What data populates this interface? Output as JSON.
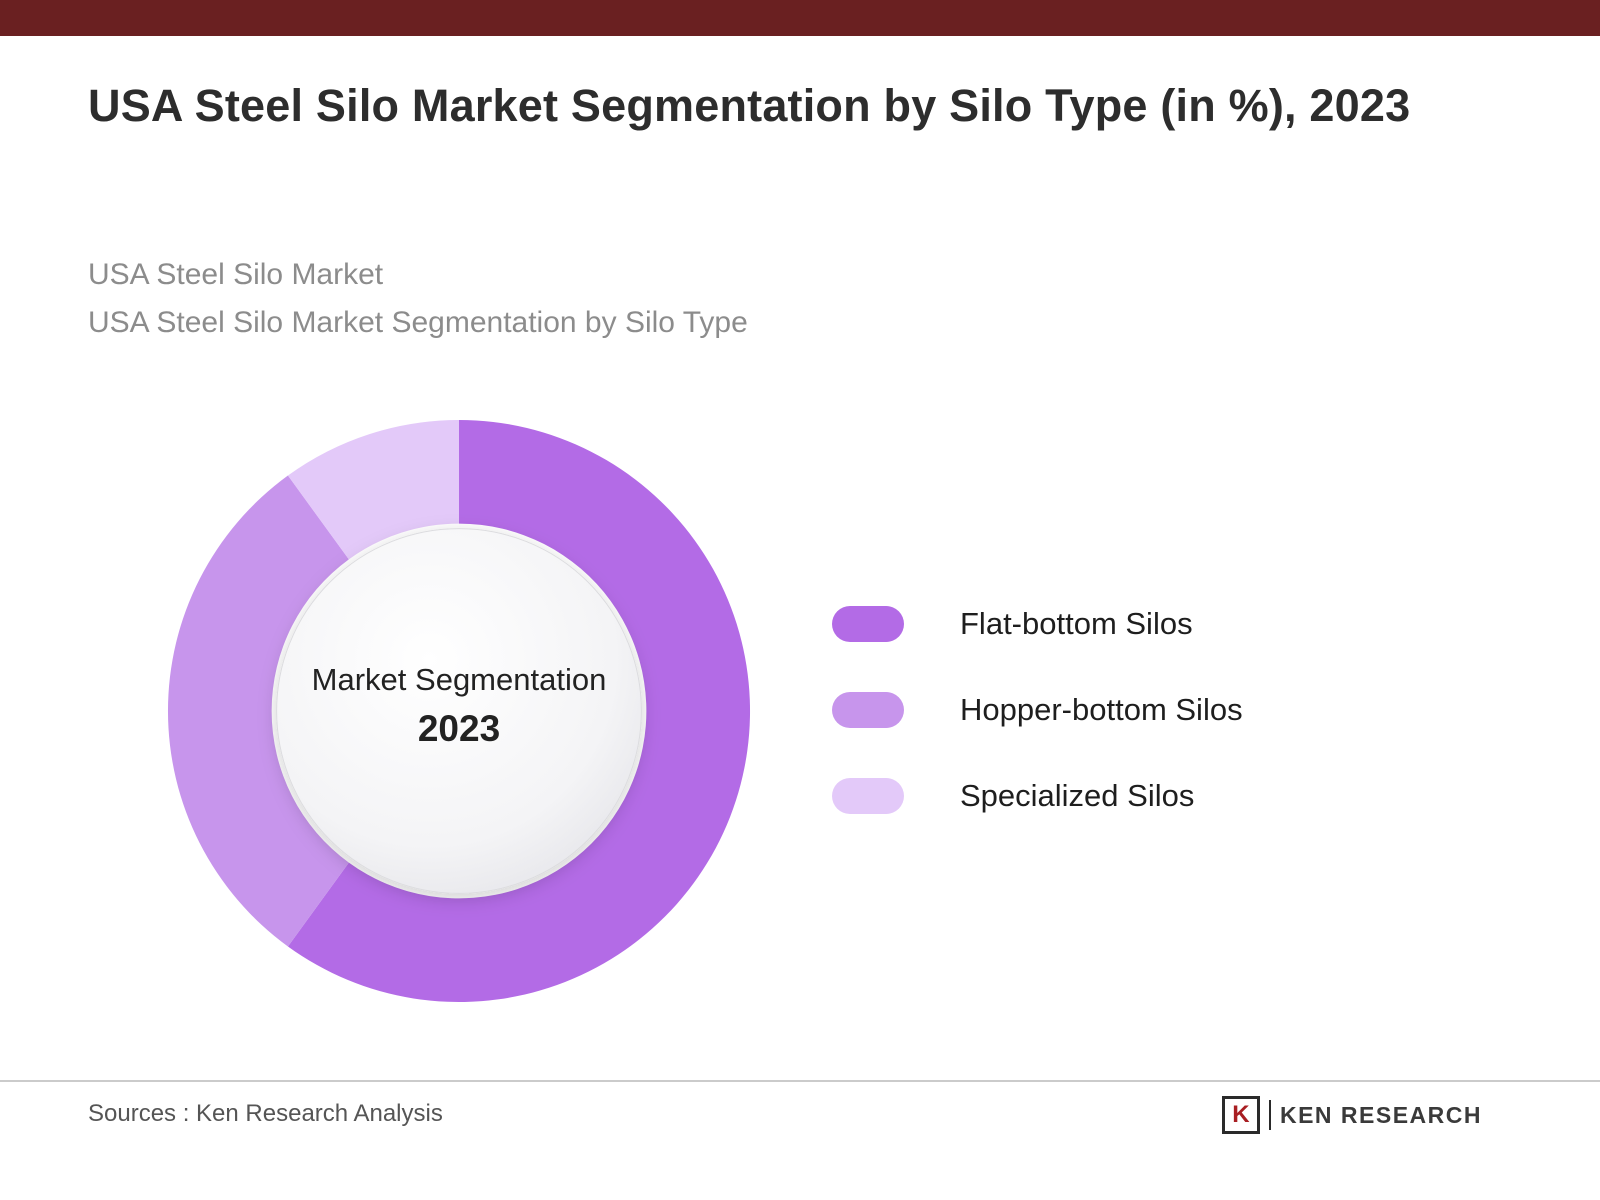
{
  "page": {
    "title": "USA Steel Silo Market Segmentation by Silo Type (in %), 2023",
    "subtitle_line1": "USA Steel Silo Market",
    "subtitle_line2": "USA Steel Silo Market Segmentation by Silo Type"
  },
  "chart_data": {
    "type": "pie",
    "donut": true,
    "title": "USA Steel Silo Market Segmentation by Silo Type (in %), 2023",
    "center_label": "Market Segmentation",
    "center_year": "2023",
    "categories": [
      "Flat-bottom Silos",
      "Hopper-bottom Silos",
      "Specialized Silos"
    ],
    "values": [
      60,
      30,
      10
    ],
    "colors": [
      "#b36be6",
      "#c795ec",
      "#e3c9f9"
    ],
    "legend_position": "right",
    "start_angle_deg": 0
  },
  "legend": {
    "items": [
      {
        "label": "Flat-bottom Silos",
        "color": "#b36be6"
      },
      {
        "label": "Hopper-bottom Silos",
        "color": "#c795ec"
      },
      {
        "label": "Specialized Silos",
        "color": "#e3c9f9"
      }
    ]
  },
  "footer": {
    "sources": "Sources : Ken Research Analysis",
    "brand": "KEN RESEARCH",
    "brand_mark_letter": "K"
  },
  "colors": {
    "top_bar": "#6a2021",
    "brand_red": "#a81e22",
    "title_text": "#2d2d2d",
    "subtitle_text": "#8c8c8c"
  }
}
